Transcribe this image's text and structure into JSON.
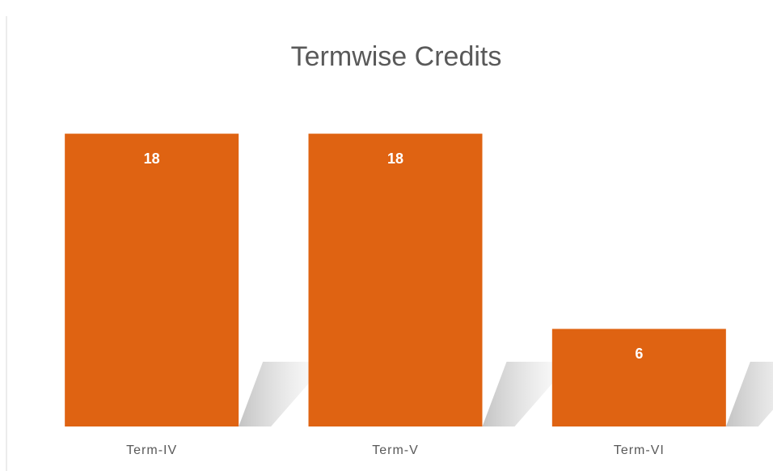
{
  "chart_data": {
    "type": "bar",
    "title": "Termwise Credits",
    "categories": [
      "Term-IV",
      "Term-V",
      "Term-VI"
    ],
    "values": [
      18,
      18,
      6
    ],
    "color": "#df6312",
    "ylim": [
      0,
      20
    ]
  }
}
